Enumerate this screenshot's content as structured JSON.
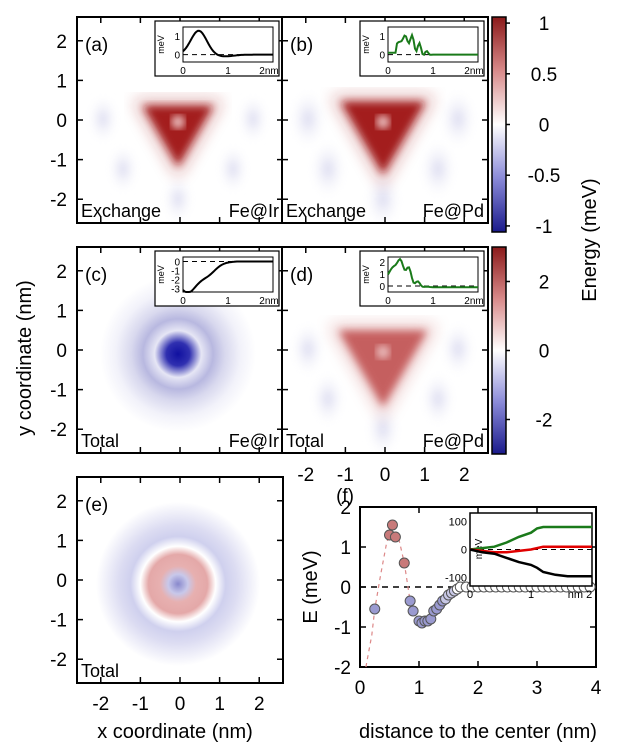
{
  "figure": {
    "xlabel_left": "x coordinate (nm)",
    "xlabel_right": "distance to the center (nm)",
    "ylabel_left": "y coordinate (nm)",
    "colorbar_label": "Energy (meV)",
    "map_ticks": [
      "-2",
      "-1",
      "0",
      "1",
      "2"
    ],
    "map_tick_values": [
      -2,
      -1,
      0,
      1,
      2
    ],
    "colorbar_top_ticks": [
      "1",
      "0.5",
      "0",
      "-0.5",
      "-1"
    ],
    "colorbar_top_values": [
      1,
      0.5,
      0,
      -0.5,
      -1
    ],
    "colorbar_mid_ticks": [
      "2",
      "0",
      "-2"
    ],
    "colorbar_mid_values": [
      2,
      0,
      -2
    ],
    "colors": {
      "positive": "#8b1a1a",
      "negative": "#1a1a8b",
      "inset_black": "#000000",
      "inset_green": "#1a7a1a",
      "inset_red": "#e00000"
    }
  },
  "panels": [
    {
      "id": "a",
      "tag": "(a)",
      "left": "Exchange",
      "right": "Fe@Ir",
      "shape": "tri",
      "amp": 1.0,
      "scale": 1.0,
      "inset": {
        "ylabel": "meV",
        "yticks": [
          "1",
          "0"
        ],
        "yticks_v": [
          1,
          0
        ],
        "ymin": -0.4,
        "ymax": 1.5,
        "xticks": [
          "0",
          "1",
          "2nm"
        ],
        "color": "#000000",
        "kind": "a"
      }
    },
    {
      "id": "b",
      "tag": "(b)",
      "left": "Exchange",
      "right": "Fe@Pd",
      "shape": "tri",
      "amp": 0.95,
      "scale": 1.2,
      "inset": {
        "ylabel": "meV",
        "yticks": [
          "1",
          "0"
        ],
        "yticks_v": [
          1,
          0
        ],
        "ymin": -0.4,
        "ymax": 1.5,
        "xticks": [
          "0",
          "1",
          "2nm"
        ],
        "color": "#1a7a1a",
        "kind": "b"
      }
    },
    {
      "id": "c",
      "tag": "(c)",
      "left": "Total",
      "right": "Fe@Ir",
      "shape": "ring_neg",
      "amp": -1.0,
      "scale": 1.0,
      "inset": {
        "ylabel": "meV",
        "yticks": [
          "0",
          "-1",
          "-2",
          "-3"
        ],
        "yticks_v": [
          0,
          -1,
          -2,
          -3
        ],
        "ymin": -3.4,
        "ymax": 0.5,
        "xticks": [
          "0",
          "1",
          "2nm"
        ],
        "color": "#000000",
        "kind": "c"
      }
    },
    {
      "id": "d",
      "tag": "(d)",
      "left": "Total",
      "right": "Fe@Pd",
      "shape": "tri_pos",
      "amp": 0.7,
      "scale": 1.1,
      "inset": {
        "ylabel": "meV",
        "yticks": [
          "2",
          "1",
          "0"
        ],
        "yticks_v": [
          2,
          1,
          0
        ],
        "ymin": -0.5,
        "ymax": 2.4,
        "xticks": [
          "0",
          "1",
          "2nm"
        ],
        "color": "#1a7a1a",
        "kind": "d"
      }
    },
    {
      "id": "e",
      "tag": "(e)",
      "left": "Total",
      "right": "",
      "shape": "ring_pos",
      "amp": 0.6,
      "scale": 1.0,
      "inset": null
    }
  ],
  "chart_data": {
    "type": "scatter",
    "panel": "(f)",
    "xlabel": "distance to the center (nm)",
    "ylabel": "E (meV)",
    "xlim": [
      0,
      4
    ],
    "ylim": [
      -2,
      2
    ],
    "xticks": [
      "0",
      "1",
      "2",
      "3",
      "4"
    ],
    "xtick_values": [
      0,
      1,
      2,
      3,
      4
    ],
    "yticks": [
      "2",
      "1",
      "0",
      "-1",
      "-2"
    ],
    "ytick_values": [
      2,
      1,
      0,
      -1,
      -2
    ],
    "series": [
      {
        "x": [
          0.25,
          0.5,
          0.55,
          0.6,
          0.75,
          0.85,
          0.9,
          1.0,
          1.05,
          1.1,
          1.15,
          1.2,
          1.25,
          1.3,
          1.35,
          1.4,
          1.45,
          1.5,
          1.55,
          1.6,
          1.65,
          1.7,
          1.8,
          1.9,
          2.0,
          2.1,
          2.2,
          2.3,
          2.4,
          2.5,
          2.6,
          2.7,
          2.8,
          2.9,
          3.0,
          3.1,
          3.2,
          3.3,
          3.4,
          3.5,
          3.6,
          3.7,
          3.8,
          3.9
        ],
        "y": [
          -0.55,
          1.3,
          1.55,
          1.25,
          0.6,
          -0.35,
          -0.6,
          -0.85,
          -0.9,
          -0.85,
          -0.85,
          -0.8,
          -0.6,
          -0.55,
          -0.45,
          -0.35,
          -0.3,
          -0.2,
          -0.15,
          -0.1,
          -0.05,
          0,
          0,
          0,
          0,
          0,
          0,
          0,
          0,
          0,
          0,
          0,
          0,
          0,
          0,
          0,
          0,
          0,
          0,
          0,
          0,
          0,
          0,
          0
        ]
      }
    ],
    "inset": {
      "ylabel": "meV",
      "yticks": [
        "100",
        "0",
        "-100"
      ],
      "ytick_values": [
        100,
        0,
        -100
      ],
      "xticks": [
        "0",
        "1",
        "nm 2"
      ],
      "xtick_values": [
        0,
        1,
        2
      ],
      "xlim": [
        0,
        2
      ],
      "ylim": [
        -130,
        130
      ],
      "series": [
        {
          "color": "#1a7a1a",
          "x": [
            0,
            0.2,
            0.4,
            0.6,
            0.8,
            1.0,
            1.1,
            1.2,
            1.4,
            1.6,
            1.8,
            2.0
          ],
          "y": [
            0,
            5,
            10,
            25,
            45,
            60,
            75,
            80,
            80,
            80,
            80,
            80
          ]
        },
        {
          "color": "#e00000",
          "x": [
            0,
            0.2,
            0.4,
            0.6,
            0.8,
            1.0,
            1.1,
            1.2,
            1.4,
            1.6,
            1.8,
            2.0
          ],
          "y": [
            0,
            -5,
            -10,
            -10,
            -5,
            0,
            5,
            10,
            10,
            10,
            10,
            10
          ]
        },
        {
          "color": "#000000",
          "x": [
            0,
            0.2,
            0.4,
            0.6,
            0.8,
            1.0,
            1.1,
            1.2,
            1.4,
            1.6,
            1.8,
            2.0
          ],
          "y": [
            0,
            -10,
            -15,
            -30,
            -45,
            -55,
            -65,
            -80,
            -90,
            -95,
            -95,
            -95
          ]
        }
      ]
    }
  }
}
